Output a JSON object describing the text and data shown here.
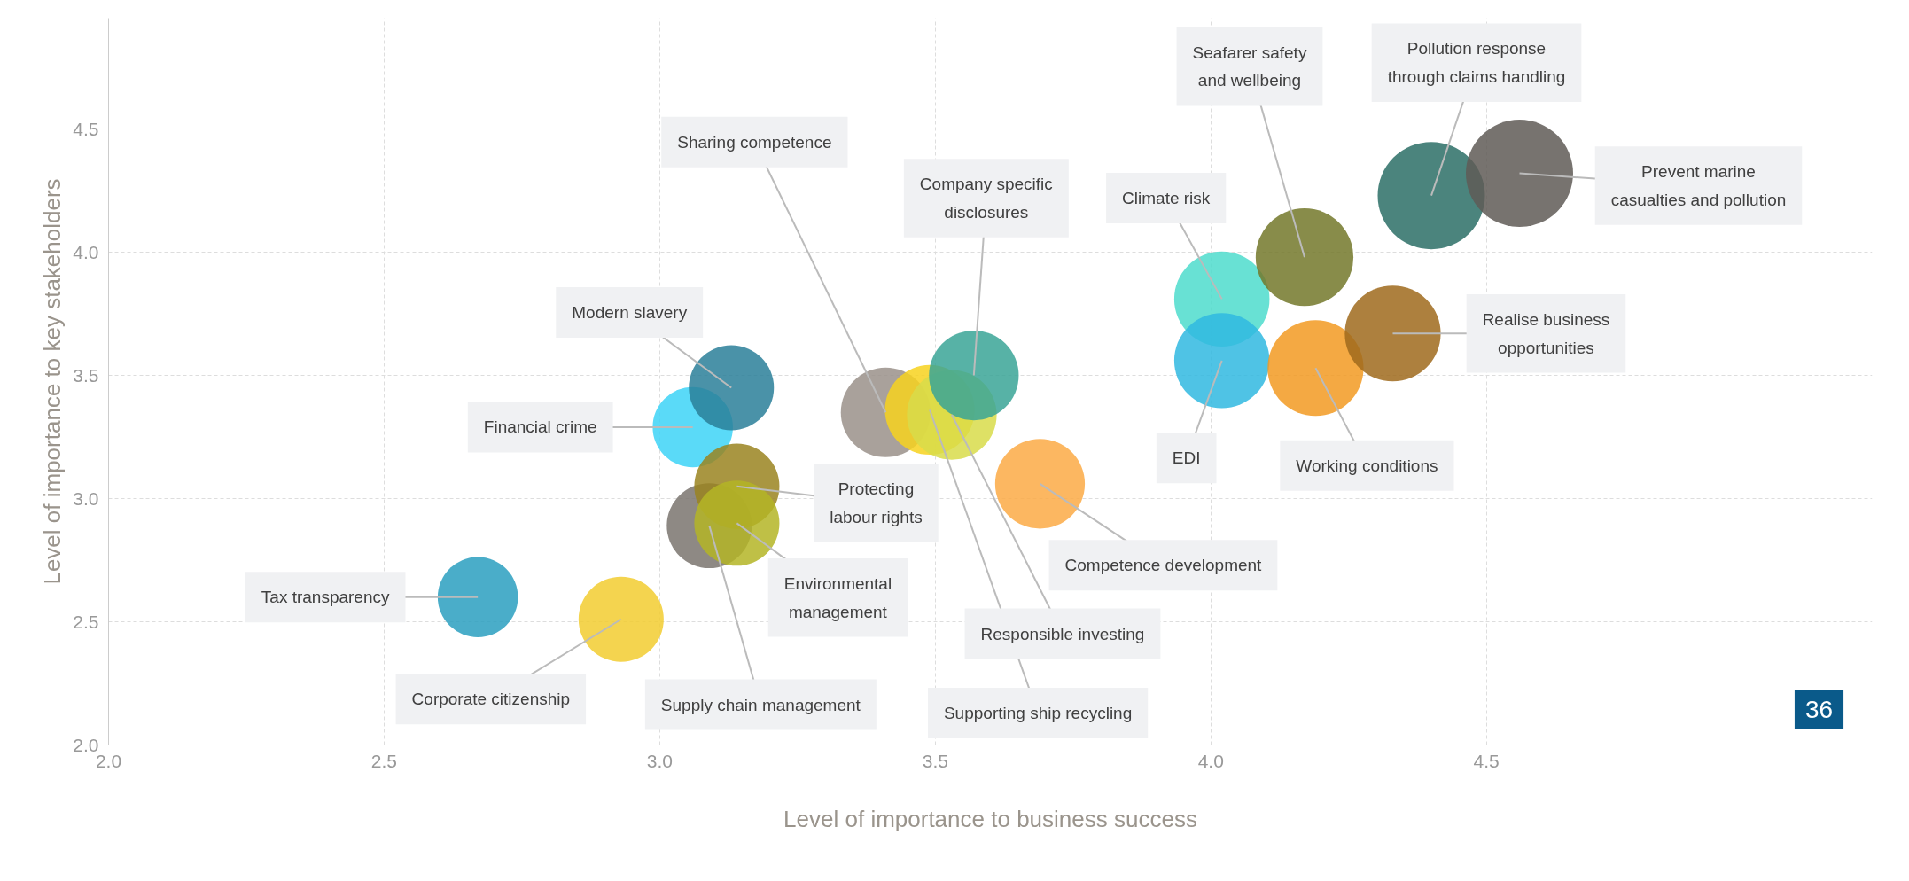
{
  "chart_data": {
    "type": "bubble",
    "xlabel": "Level of importance to business success",
    "ylabel": "Level of importance to key stakeholders",
    "x": [
      2.67,
      2.93,
      3.06,
      3.13,
      3.09,
      3.14,
      3.14,
      3.41,
      3.49,
      3.53,
      3.57,
      3.69,
      4.02,
      4.02,
      4.19,
      4.17,
      4.33,
      4.4,
      4.56
    ],
    "values": [
      2.6,
      2.51,
      3.29,
      3.45,
      2.89,
      3.05,
      2.9,
      3.35,
      3.36,
      3.34,
      3.5,
      3.06,
      3.81,
      3.56,
      3.53,
      3.98,
      3.67,
      4.23,
      4.32
    ],
    "sizes": [
      0.56,
      0.63,
      0.56,
      0.63,
      0.63,
      0.63,
      0.63,
      0.7,
      0.7,
      0.7,
      0.7,
      0.7,
      0.79,
      0.79,
      0.8,
      0.83,
      0.8,
      1,
      1
    ],
    "colors": [
      "#2a9fbf",
      "#f2cc30",
      "#3dd4f7",
      "#2a7f99",
      "#7a746e",
      "#9a8420",
      "#b4b526",
      "#9a918a",
      "#f7d21e",
      "#d8dc4a",
      "#3aa597",
      "#fcaa45",
      "#4ddccc",
      "#30b9e0",
      "#f29a22",
      "#73782a",
      "#9f6a1c",
      "#2c6f66",
      "#5f5a56"
    ],
    "xlim": [
      2.0,
      5.2
    ],
    "ylim": [
      2.0,
      4.95
    ],
    "xticks": [
      {
        "value": 2,
        "label": "2.0"
      },
      2.5,
      {
        "value": 3,
        "label": "3.0"
      },
      3.5,
      {
        "value": 4,
        "label": "4.0"
      },
      4.5
    ],
    "yticks": [
      {
        "value": 2,
        "label": "2.0"
      },
      2.5,
      {
        "value": 3,
        "label": "3.0"
      },
      3.5,
      {
        "value": 4,
        "label": "4.0"
      },
      4.5
    ],
    "grid": true,
    "annotations": [
      {
        "text": "Tax transparency",
        "x": 2.67,
        "y": 2.6
      },
      {
        "text": "Corporate citizenship",
        "x": 2.93,
        "y": 2.51
      },
      {
        "text": "Financial crime",
        "x": 3.06,
        "y": 3.29
      },
      {
        "text": "Modern slavery",
        "x": 3.13,
        "y": 3.45
      },
      {
        "text": "Supply chain management",
        "x": 3.09,
        "y": 2.89
      },
      {
        "text": "Protecting\nlabour rights",
        "x": 3.14,
        "y": 3.05
      },
      {
        "text": "Environmental\nmanagement",
        "x": 3.14,
        "y": 2.9
      },
      {
        "text": "Sharing competence",
        "x": 3.41,
        "y": 3.35
      },
      {
        "text": "Supporting ship recycling",
        "x": 3.49,
        "y": 3.36
      },
      {
        "text": "Responsible investing",
        "x": 3.53,
        "y": 3.34
      },
      {
        "text": "Company specific\ndisclosures",
        "x": 3.57,
        "y": 3.5
      },
      {
        "text": "Competence development",
        "x": 3.69,
        "y": 3.06
      },
      {
        "text": "Climate risk",
        "x": 4.02,
        "y": 3.81
      },
      {
        "text": "EDI",
        "x": 4.02,
        "y": 3.56
      },
      {
        "text": "Working conditions",
        "x": 4.19,
        "y": 3.53
      },
      {
        "text": "Seafarer safety\nand wellbeing",
        "x": 4.17,
        "y": 3.98
      },
      {
        "text": "Realise business\nopportunities",
        "x": 4.33,
        "y": 3.67
      },
      {
        "text": "Pollution response\nthrough claims handling",
        "x": 4.4,
        "y": 4.23
      },
      {
        "text": "Prevent marine\ncasualties and pollution",
        "x": 4.56,
        "y": 4.32
      },
      "36"
    ]
  }
}
